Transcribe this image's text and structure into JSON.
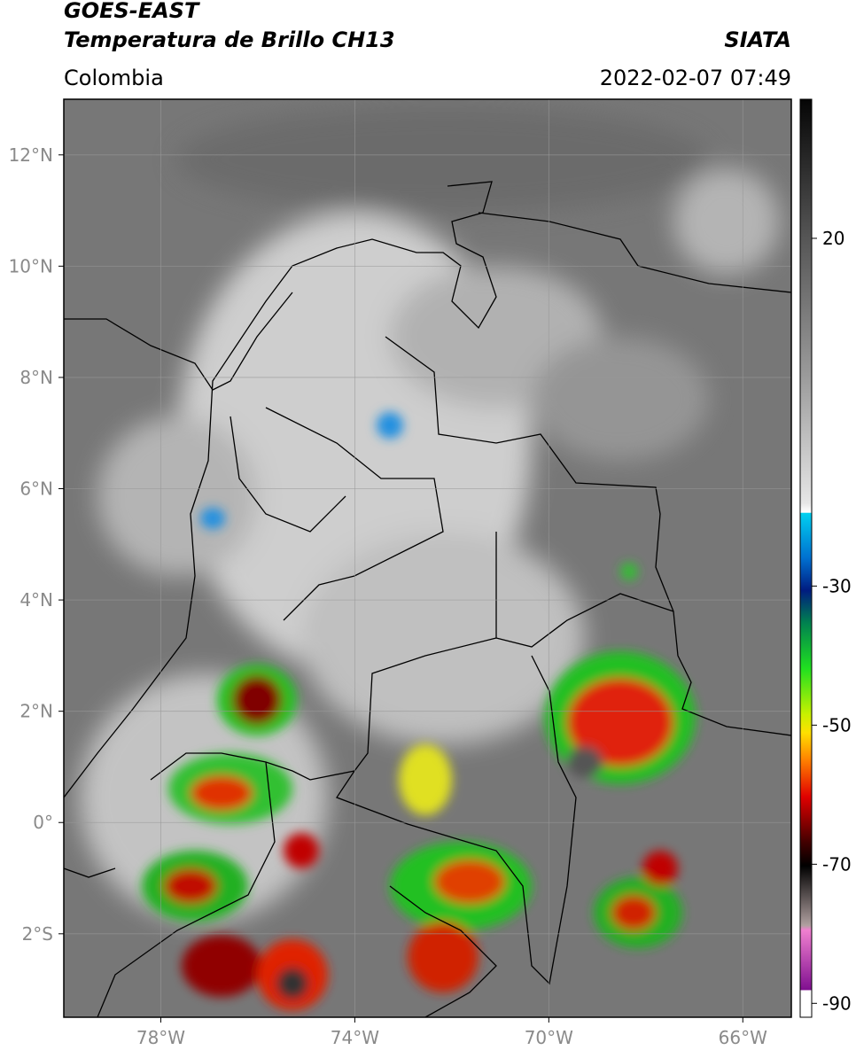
{
  "header": {
    "title_line1": "GOES-EAST",
    "title_line2": "Temperatura de Brillo CH13",
    "region": "Colombia",
    "source": "SIATA",
    "datetime": "2022-02-07 07:49"
  },
  "map": {
    "xlim": [
      -80,
      -65
    ],
    "ylim": [
      -3.5,
      13
    ],
    "xticks": [
      {
        "value": -78,
        "label": "78°W"
      },
      {
        "value": -74,
        "label": "74°W"
      },
      {
        "value": -70,
        "label": "70°W"
      },
      {
        "value": -66,
        "label": "66°W"
      }
    ],
    "yticks": [
      {
        "value": 12,
        "label": "12°N"
      },
      {
        "value": 10,
        "label": "10°N"
      },
      {
        "value": 8,
        "label": "8°N"
      },
      {
        "value": 6,
        "label": "6°N"
      },
      {
        "value": 4,
        "label": "4°N"
      },
      {
        "value": 2,
        "label": "2°N"
      },
      {
        "value": 0,
        "label": "0°"
      },
      {
        "value": -2,
        "label": "2°S"
      }
    ],
    "grid": true
  },
  "colorbar": {
    "lim": [
      -92,
      40
    ],
    "ticks": [
      20,
      -30,
      -50,
      -70,
      -90
    ]
  }
}
